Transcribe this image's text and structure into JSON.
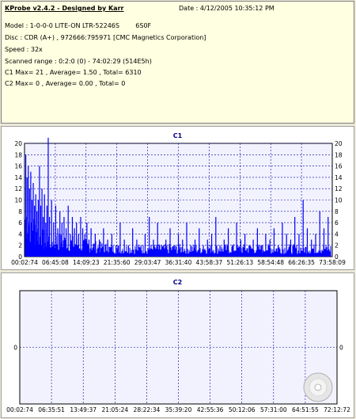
{
  "header": {
    "title": "KProbe v2.4.2 - Designed by Karr",
    "date": "Date : 4/12/2005 10:35:12 PM",
    "model": "Model : 1-0-0-0 LITE-ON LTR-52246S        6S0F",
    "disc": "Disc : CDR (A+) , 972666:795971 [CMC Magnetics Corporation]",
    "speed": "Speed : 32x",
    "range": "Scanned range : 0:2:0 (0) - 74:02:29 (514E5h)",
    "c1_stats": "C1 Max= 21 , Average= 1.50 , Total= 6310",
    "c2_stats": "C2 Max= 0 , Average= 0.00 , Total= 0"
  },
  "colors": {
    "plot_background": "#f2f2ff",
    "bar": "#0000ff",
    "grid": "#0000a0"
  },
  "chart_data": [
    {
      "type": "bar",
      "title": "C1",
      "ylim": [
        0,
        20
      ],
      "y_ticks": [
        0,
        2,
        4,
        6,
        8,
        10,
        12,
        14,
        16,
        18,
        20
      ],
      "x_tick_labels": [
        "00:02:74",
        "06:45:08",
        "14:09:23",
        "21:35:60",
        "29:03:47",
        "36:31:40",
        "43:58:37",
        "51:26:13",
        "58:54:48",
        "66:26:35",
        "73:58:09"
      ],
      "xlim_minutes": [
        0,
        74
      ],
      "max": 21,
      "average": 1.5,
      "total": 6310,
      "grid": true,
      "sample_peaks": [
        [
          0.3,
          18
        ],
        [
          0.6,
          14
        ],
        [
          0.9,
          16
        ],
        [
          1.2,
          12
        ],
        [
          1.5,
          15
        ],
        [
          1.8,
          10
        ],
        [
          2.1,
          13
        ],
        [
          2.4,
          9
        ],
        [
          2.7,
          11
        ],
        [
          3.0,
          8
        ],
        [
          3.3,
          10
        ],
        [
          3.6,
          16
        ],
        [
          3.9,
          9
        ],
        [
          4.2,
          12
        ],
        [
          4.5,
          7
        ],
        [
          4.8,
          11
        ],
        [
          5.1,
          6
        ],
        [
          5.4,
          9
        ],
        [
          5.7,
          21
        ],
        [
          6.0,
          7
        ],
        [
          6.5,
          10
        ],
        [
          7.0,
          6
        ],
        [
          7.5,
          9
        ],
        [
          8.0,
          5
        ],
        [
          8.5,
          8
        ],
        [
          9.0,
          6
        ],
        [
          9.5,
          7
        ],
        [
          10.0,
          5
        ],
        [
          10.5,
          9
        ],
        [
          11.0,
          4
        ],
        [
          11.5,
          7
        ],
        [
          12.0,
          5
        ],
        [
          12.5,
          6
        ],
        [
          13.0,
          4
        ],
        [
          13.5,
          7
        ],
        [
          14.0,
          5
        ],
        [
          14.5,
          4
        ],
        [
          15.0,
          6
        ],
        [
          15.5,
          3
        ],
        [
          16.0,
          5
        ],
        [
          17.0,
          4
        ],
        [
          18.0,
          3
        ],
        [
          19.0,
          5
        ],
        [
          20.0,
          3
        ],
        [
          21.0,
          4
        ],
        [
          22.0,
          2
        ],
        [
          23.0,
          6
        ],
        [
          24.0,
          3
        ],
        [
          25.0,
          2
        ],
        [
          26.0,
          5
        ],
        [
          27.0,
          3
        ],
        [
          28.0,
          2
        ],
        [
          29.0,
          4
        ],
        [
          30.0,
          7
        ],
        [
          31.0,
          3
        ],
        [
          32.0,
          6
        ],
        [
          33.0,
          2
        ],
        [
          34.0,
          3
        ],
        [
          35.0,
          5
        ],
        [
          36.0,
          2
        ],
        [
          37.0,
          4
        ],
        [
          38.0,
          3
        ],
        [
          39.0,
          6
        ],
        [
          40.0,
          2
        ],
        [
          41.0,
          3
        ],
        [
          42.0,
          5
        ],
        [
          43.0,
          2
        ],
        [
          44.0,
          3
        ],
        [
          45.0,
          4
        ],
        [
          46.0,
          7
        ],
        [
          47.0,
          2
        ],
        [
          48.0,
          3
        ],
        [
          49.0,
          5
        ],
        [
          50.0,
          2
        ],
        [
          51.0,
          6
        ],
        [
          52.0,
          3
        ],
        [
          53.0,
          4
        ],
        [
          54.0,
          2
        ],
        [
          55.0,
          3
        ],
        [
          56.0,
          5
        ],
        [
          57.0,
          2
        ],
        [
          58.0,
          4
        ],
        [
          59.0,
          3
        ],
        [
          60.0,
          5
        ],
        [
          61.0,
          2
        ],
        [
          62.0,
          6
        ],
        [
          63.0,
          4
        ],
        [
          64.0,
          3
        ],
        [
          65.0,
          7
        ],
        [
          66.0,
          4
        ],
        [
          67.0,
          10
        ],
        [
          68.0,
          5
        ],
        [
          69.0,
          3
        ],
        [
          70.0,
          4
        ],
        [
          71.0,
          8
        ],
        [
          72.0,
          5
        ],
        [
          73.0,
          7
        ]
      ]
    },
    {
      "type": "bar",
      "title": "C2",
      "ylim": [
        -1,
        1
      ],
      "y_ticks": [
        0
      ],
      "x_tick_labels": [
        "00:02:74",
        "06:35:51",
        "13:49:37",
        "21:05:24",
        "28:22:34",
        "35:39:20",
        "42:55:36",
        "50:12:06",
        "57:31:00",
        "64:51:55",
        "72:12:72"
      ],
      "max": 0,
      "average": 0,
      "total": 0,
      "grid": true
    }
  ]
}
